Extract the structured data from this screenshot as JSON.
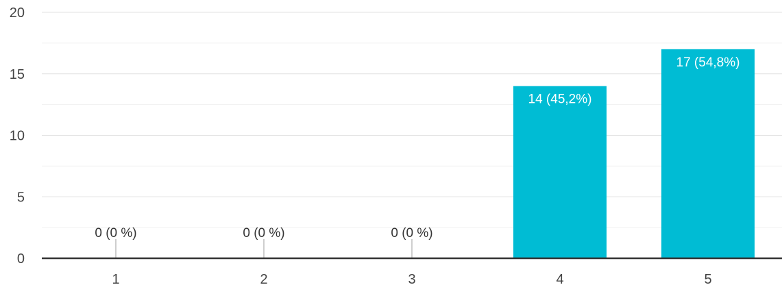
{
  "chart_data": {
    "type": "bar",
    "categories": [
      "1",
      "2",
      "3",
      "4",
      "5"
    ],
    "values": [
      0,
      0,
      0,
      14,
      17
    ],
    "data_labels": [
      "0 (0 %)",
      "0 (0 %)",
      "0 (0 %)",
      "14 (45,2%)",
      "17 (54,8%)"
    ],
    "ylim": [
      0,
      20
    ],
    "yticks": [
      0,
      5,
      10,
      15,
      20
    ],
    "title": "",
    "xlabel": "",
    "ylabel": "",
    "grid": true,
    "colors": {
      "bar": "#00BCD4",
      "grid": "#E0E0E0",
      "minor_grid": "#F0F0F0",
      "axis": "#333333",
      "label_inside": "#FFFFFF",
      "label_outside": "#333333"
    }
  }
}
